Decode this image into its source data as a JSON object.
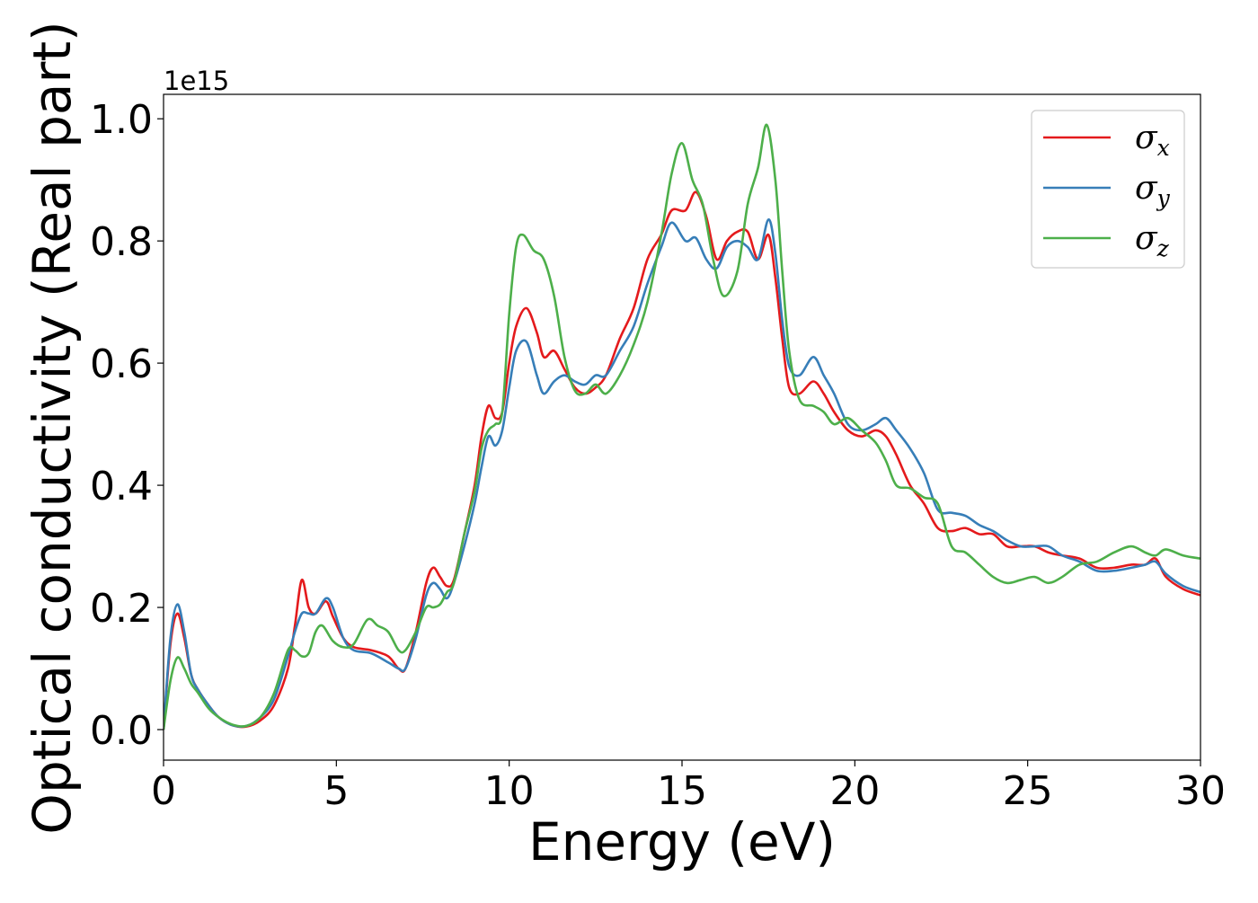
{
  "chart_data": {
    "type": "line",
    "title": "",
    "xlabel": "Energy (eV)",
    "ylabel": "Optical conductivity (Real part)",
    "y_offset_label": "1e15",
    "xlim": [
      0,
      30
    ],
    "ylim": [
      -0.05,
      1.04
    ],
    "x_ticks": [
      0,
      5,
      10,
      15,
      20,
      25,
      30
    ],
    "y_ticks": [
      0.0,
      0.2,
      0.4,
      0.6,
      0.8,
      1.0
    ],
    "x_tick_labels": [
      "0",
      "5",
      "10",
      "15",
      "20",
      "25",
      "30"
    ],
    "y_tick_labels": [
      "0.0",
      "0.2",
      "0.4",
      "0.6",
      "0.8",
      "1.0"
    ],
    "grid": false,
    "legend_position": "top-right",
    "series": [
      {
        "name": "σx",
        "legend_base": "σ",
        "legend_sub": "x",
        "color": "#e41a1c",
        "points": [
          [
            0,
            0.0
          ],
          [
            0.2,
            0.14
          ],
          [
            0.4,
            0.19
          ],
          [
            0.6,
            0.15
          ],
          [
            0.8,
            0.09
          ],
          [
            1.0,
            0.065
          ],
          [
            1.3,
            0.04
          ],
          [
            1.6,
            0.02
          ],
          [
            2.0,
            0.007
          ],
          [
            2.4,
            0.005
          ],
          [
            2.8,
            0.015
          ],
          [
            3.2,
            0.04
          ],
          [
            3.6,
            0.1
          ],
          [
            3.8,
            0.17
          ],
          [
            4.0,
            0.245
          ],
          [
            4.2,
            0.2
          ],
          [
            4.4,
            0.19
          ],
          [
            4.7,
            0.21
          ],
          [
            4.9,
            0.185
          ],
          [
            5.2,
            0.15
          ],
          [
            5.5,
            0.135
          ],
          [
            6.0,
            0.13
          ],
          [
            6.5,
            0.12
          ],
          [
            6.8,
            0.1
          ],
          [
            7.0,
            0.1
          ],
          [
            7.3,
            0.16
          ],
          [
            7.6,
            0.24
          ],
          [
            7.8,
            0.265
          ],
          [
            8.0,
            0.25
          ],
          [
            8.2,
            0.235
          ],
          [
            8.4,
            0.245
          ],
          [
            8.7,
            0.32
          ],
          [
            9.0,
            0.4
          ],
          [
            9.2,
            0.48
          ],
          [
            9.4,
            0.53
          ],
          [
            9.6,
            0.51
          ],
          [
            9.8,
            0.52
          ],
          [
            10.0,
            0.6
          ],
          [
            10.2,
            0.66
          ],
          [
            10.5,
            0.69
          ],
          [
            10.8,
            0.65
          ],
          [
            11.0,
            0.61
          ],
          [
            11.3,
            0.62
          ],
          [
            11.6,
            0.59
          ],
          [
            11.9,
            0.56
          ],
          [
            12.2,
            0.55
          ],
          [
            12.5,
            0.56
          ],
          [
            12.8,
            0.58
          ],
          [
            13.2,
            0.64
          ],
          [
            13.6,
            0.69
          ],
          [
            14.0,
            0.77
          ],
          [
            14.4,
            0.81
          ],
          [
            14.7,
            0.85
          ],
          [
            15.1,
            0.85
          ],
          [
            15.4,
            0.88
          ],
          [
            15.7,
            0.84
          ],
          [
            16.0,
            0.77
          ],
          [
            16.3,
            0.8
          ],
          [
            16.6,
            0.815
          ],
          [
            16.9,
            0.815
          ],
          [
            17.2,
            0.77
          ],
          [
            17.5,
            0.81
          ],
          [
            17.7,
            0.74
          ],
          [
            17.9,
            0.64
          ],
          [
            18.1,
            0.56
          ],
          [
            18.4,
            0.55
          ],
          [
            18.8,
            0.57
          ],
          [
            19.1,
            0.55
          ],
          [
            19.4,
            0.52
          ],
          [
            19.8,
            0.49
          ],
          [
            20.2,
            0.48
          ],
          [
            20.6,
            0.49
          ],
          [
            20.9,
            0.48
          ],
          [
            21.2,
            0.45
          ],
          [
            21.6,
            0.4
          ],
          [
            22.0,
            0.37
          ],
          [
            22.4,
            0.33
          ],
          [
            22.8,
            0.325
          ],
          [
            23.2,
            0.33
          ],
          [
            23.6,
            0.32
          ],
          [
            24.0,
            0.32
          ],
          [
            24.4,
            0.3
          ],
          [
            24.8,
            0.3
          ],
          [
            25.2,
            0.3
          ],
          [
            25.6,
            0.29
          ],
          [
            26.0,
            0.285
          ],
          [
            26.5,
            0.28
          ],
          [
            27.0,
            0.265
          ],
          [
            27.5,
            0.265
          ],
          [
            28.0,
            0.27
          ],
          [
            28.4,
            0.27
          ],
          [
            28.7,
            0.28
          ],
          [
            29.0,
            0.25
          ],
          [
            29.5,
            0.23
          ],
          [
            30.0,
            0.22
          ]
        ]
      },
      {
        "name": "σy",
        "legend_base": "σ",
        "legend_sub": "y",
        "color": "#377eb8",
        "points": [
          [
            0,
            0.0
          ],
          [
            0.2,
            0.15
          ],
          [
            0.4,
            0.205
          ],
          [
            0.6,
            0.16
          ],
          [
            0.8,
            0.09
          ],
          [
            1.0,
            0.065
          ],
          [
            1.3,
            0.04
          ],
          [
            1.6,
            0.02
          ],
          [
            2.0,
            0.007
          ],
          [
            2.4,
            0.006
          ],
          [
            2.8,
            0.02
          ],
          [
            3.2,
            0.05
          ],
          [
            3.6,
            0.12
          ],
          [
            3.8,
            0.16
          ],
          [
            4.0,
            0.19
          ],
          [
            4.2,
            0.19
          ],
          [
            4.4,
            0.19
          ],
          [
            4.7,
            0.215
          ],
          [
            4.9,
            0.2
          ],
          [
            5.2,
            0.15
          ],
          [
            5.5,
            0.13
          ],
          [
            6.0,
            0.125
          ],
          [
            6.5,
            0.11
          ],
          [
            6.8,
            0.1
          ],
          [
            7.0,
            0.1
          ],
          [
            7.3,
            0.15
          ],
          [
            7.6,
            0.22
          ],
          [
            7.8,
            0.24
          ],
          [
            8.0,
            0.23
          ],
          [
            8.2,
            0.215
          ],
          [
            8.4,
            0.24
          ],
          [
            8.7,
            0.3
          ],
          [
            9.0,
            0.37
          ],
          [
            9.2,
            0.43
          ],
          [
            9.4,
            0.48
          ],
          [
            9.6,
            0.465
          ],
          [
            9.8,
            0.49
          ],
          [
            10.0,
            0.56
          ],
          [
            10.2,
            0.62
          ],
          [
            10.5,
            0.635
          ],
          [
            10.8,
            0.58
          ],
          [
            11.0,
            0.55
          ],
          [
            11.3,
            0.57
          ],
          [
            11.6,
            0.58
          ],
          [
            11.9,
            0.57
          ],
          [
            12.2,
            0.565
          ],
          [
            12.5,
            0.58
          ],
          [
            12.8,
            0.58
          ],
          [
            13.2,
            0.62
          ],
          [
            13.6,
            0.66
          ],
          [
            14.0,
            0.73
          ],
          [
            14.4,
            0.79
          ],
          [
            14.7,
            0.83
          ],
          [
            15.1,
            0.8
          ],
          [
            15.4,
            0.805
          ],
          [
            15.7,
            0.77
          ],
          [
            16.0,
            0.755
          ],
          [
            16.3,
            0.79
          ],
          [
            16.6,
            0.8
          ],
          [
            16.9,
            0.79
          ],
          [
            17.2,
            0.77
          ],
          [
            17.5,
            0.835
          ],
          [
            17.7,
            0.78
          ],
          [
            17.9,
            0.67
          ],
          [
            18.1,
            0.595
          ],
          [
            18.4,
            0.58
          ],
          [
            18.8,
            0.61
          ],
          [
            19.1,
            0.58
          ],
          [
            19.4,
            0.55
          ],
          [
            19.8,
            0.5
          ],
          [
            20.2,
            0.49
          ],
          [
            20.6,
            0.5
          ],
          [
            20.9,
            0.51
          ],
          [
            21.2,
            0.49
          ],
          [
            21.6,
            0.46
          ],
          [
            22.0,
            0.42
          ],
          [
            22.4,
            0.36
          ],
          [
            22.8,
            0.355
          ],
          [
            23.2,
            0.35
          ],
          [
            23.6,
            0.335
          ],
          [
            24.0,
            0.325
          ],
          [
            24.4,
            0.31
          ],
          [
            24.8,
            0.3
          ],
          [
            25.2,
            0.3
          ],
          [
            25.6,
            0.3
          ],
          [
            26.0,
            0.285
          ],
          [
            26.5,
            0.275
          ],
          [
            27.0,
            0.26
          ],
          [
            27.5,
            0.26
          ],
          [
            28.0,
            0.265
          ],
          [
            28.4,
            0.27
          ],
          [
            28.7,
            0.275
          ],
          [
            29.0,
            0.255
          ],
          [
            29.5,
            0.235
          ],
          [
            30.0,
            0.225
          ]
        ]
      },
      {
        "name": "σz",
        "legend_base": "σ",
        "legend_sub": "z",
        "color": "#4daf4a",
        "points": [
          [
            0,
            0.0
          ],
          [
            0.2,
            0.08
          ],
          [
            0.4,
            0.118
          ],
          [
            0.6,
            0.1
          ],
          [
            0.8,
            0.075
          ],
          [
            1.0,
            0.06
          ],
          [
            1.3,
            0.035
          ],
          [
            1.6,
            0.02
          ],
          [
            2.0,
            0.008
          ],
          [
            2.4,
            0.006
          ],
          [
            2.8,
            0.02
          ],
          [
            3.2,
            0.06
          ],
          [
            3.6,
            0.13
          ],
          [
            3.8,
            0.13
          ],
          [
            4.0,
            0.12
          ],
          [
            4.2,
            0.125
          ],
          [
            4.4,
            0.16
          ],
          [
            4.6,
            0.17
          ],
          [
            4.9,
            0.145
          ],
          [
            5.2,
            0.135
          ],
          [
            5.5,
            0.14
          ],
          [
            5.9,
            0.18
          ],
          [
            6.2,
            0.17
          ],
          [
            6.5,
            0.16
          ],
          [
            6.8,
            0.13
          ],
          [
            7.0,
            0.13
          ],
          [
            7.3,
            0.16
          ],
          [
            7.6,
            0.2
          ],
          [
            7.8,
            0.2
          ],
          [
            8.0,
            0.205
          ],
          [
            8.2,
            0.225
          ],
          [
            8.4,
            0.24
          ],
          [
            8.7,
            0.32
          ],
          [
            9.0,
            0.39
          ],
          [
            9.2,
            0.46
          ],
          [
            9.4,
            0.49
          ],
          [
            9.6,
            0.5
          ],
          [
            9.8,
            0.52
          ],
          [
            10.0,
            0.68
          ],
          [
            10.2,
            0.79
          ],
          [
            10.4,
            0.81
          ],
          [
            10.7,
            0.785
          ],
          [
            11.0,
            0.77
          ],
          [
            11.3,
            0.71
          ],
          [
            11.6,
            0.61
          ],
          [
            11.9,
            0.555
          ],
          [
            12.2,
            0.55
          ],
          [
            12.5,
            0.565
          ],
          [
            12.8,
            0.55
          ],
          [
            13.2,
            0.58
          ],
          [
            13.6,
            0.63
          ],
          [
            14.0,
            0.7
          ],
          [
            14.4,
            0.81
          ],
          [
            14.7,
            0.91
          ],
          [
            15.0,
            0.96
          ],
          [
            15.3,
            0.9
          ],
          [
            15.6,
            0.86
          ],
          [
            15.9,
            0.77
          ],
          [
            16.2,
            0.71
          ],
          [
            16.6,
            0.75
          ],
          [
            16.9,
            0.86
          ],
          [
            17.2,
            0.92
          ],
          [
            17.45,
            0.99
          ],
          [
            17.7,
            0.9
          ],
          [
            17.9,
            0.75
          ],
          [
            18.1,
            0.62
          ],
          [
            18.4,
            0.54
          ],
          [
            18.8,
            0.53
          ],
          [
            19.1,
            0.52
          ],
          [
            19.4,
            0.5
          ],
          [
            19.8,
            0.51
          ],
          [
            20.2,
            0.49
          ],
          [
            20.6,
            0.47
          ],
          [
            20.9,
            0.44
          ],
          [
            21.2,
            0.4
          ],
          [
            21.6,
            0.395
          ],
          [
            22.0,
            0.38
          ],
          [
            22.4,
            0.37
          ],
          [
            22.8,
            0.3
          ],
          [
            23.2,
            0.29
          ],
          [
            23.6,
            0.27
          ],
          [
            24.0,
            0.25
          ],
          [
            24.4,
            0.24
          ],
          [
            24.8,
            0.245
          ],
          [
            25.2,
            0.25
          ],
          [
            25.6,
            0.24
          ],
          [
            26.0,
            0.25
          ],
          [
            26.5,
            0.27
          ],
          [
            27.0,
            0.275
          ],
          [
            27.5,
            0.29
          ],
          [
            28.0,
            0.3
          ],
          [
            28.4,
            0.29
          ],
          [
            28.7,
            0.285
          ],
          [
            29.0,
            0.295
          ],
          [
            29.5,
            0.285
          ],
          [
            30.0,
            0.28
          ]
        ]
      }
    ]
  }
}
